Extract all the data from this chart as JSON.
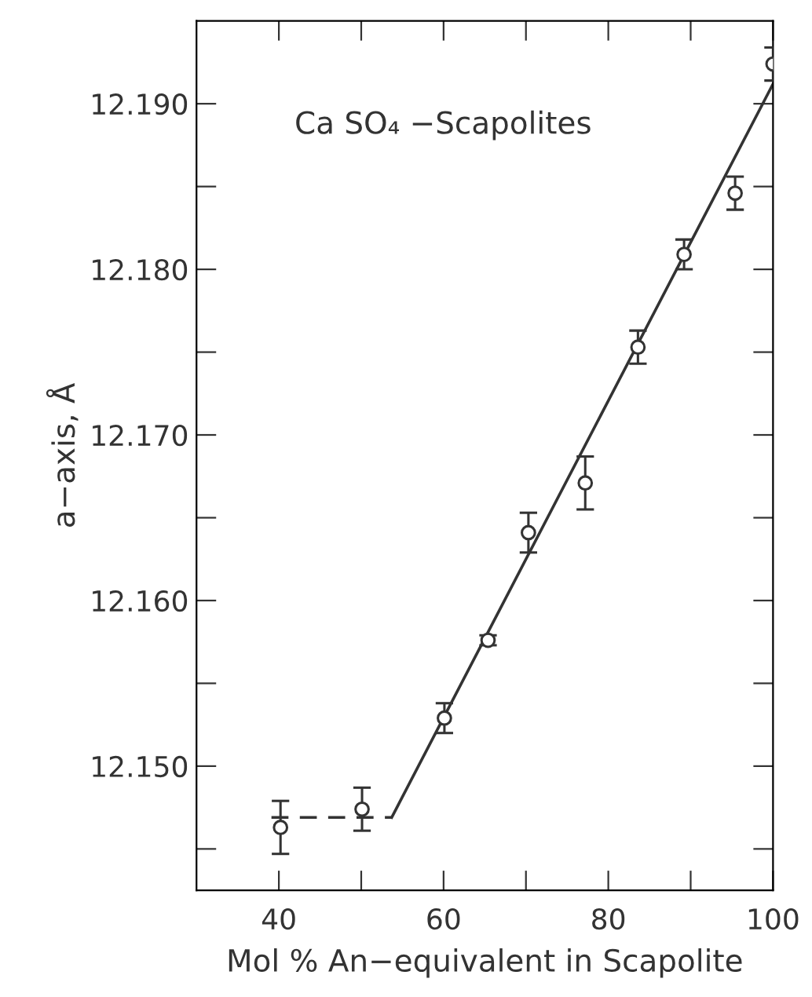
{
  "chart_data": {
    "type": "scatter",
    "xlabel": "Mol % An−equivalent in Scapolite",
    "ylabel": "a−axis, Å",
    "annotations": [
      "Ca SO₄ −Scapolites"
    ],
    "xlim": [
      30,
      100
    ],
    "ylim": [
      12.1425,
      12.195
    ],
    "xticks": [
      40,
      {
        "value": 50,
        "label": null
      },
      60,
      {
        "value": 70,
        "label": null
      },
      80,
      {
        "value": 90,
        "label": null
      },
      100
    ],
    "yticks": [
      {
        "value": 12.145,
        "label": null
      },
      {
        "value": 12.15,
        "label": "12.150"
      },
      {
        "value": 12.155,
        "label": null
      },
      {
        "value": 12.16,
        "label": "12.160"
      },
      {
        "value": 12.165,
        "label": null
      },
      {
        "value": 12.17,
        "label": "12.170"
      },
      {
        "value": 12.175,
        "label": null
      },
      {
        "value": 12.18,
        "label": "12.180"
      },
      {
        "value": 12.185,
        "label": null
      },
      {
        "value": 12.19,
        "label": "12.190"
      }
    ],
    "grid": false,
    "legend": false,
    "series": [
      {
        "color": "#333333",
        "marker": "circle",
        "x": [
          40.2,
          50.1,
          60.1,
          65.4,
          70.3,
          77.2,
          83.6,
          89.2,
          95.4,
          100
        ],
        "values": [
          12.1463,
          12.1474,
          12.1529,
          12.1576,
          12.1641,
          12.1671,
          12.1753,
          12.1809,
          12.1846,
          12.1924
        ],
        "errors": [
          0.0016,
          0.0013,
          0.0009,
          0.0003,
          0.0012,
          0.0016,
          0.001,
          0.0009,
          0.001,
          0.001
        ]
      },
      {
        "type": "line",
        "color": "#333333",
        "line_style": "dashed",
        "marker": "none",
        "x": [
          39.1,
          53.7
        ],
        "values": [
          12.1469,
          12.1469
        ]
      },
      {
        "type": "line",
        "color": "#333333",
        "line_style": "solid",
        "marker": "none",
        "x": [
          53.7,
          100
        ],
        "values": [
          12.1469,
          12.1912
        ]
      }
    ]
  }
}
